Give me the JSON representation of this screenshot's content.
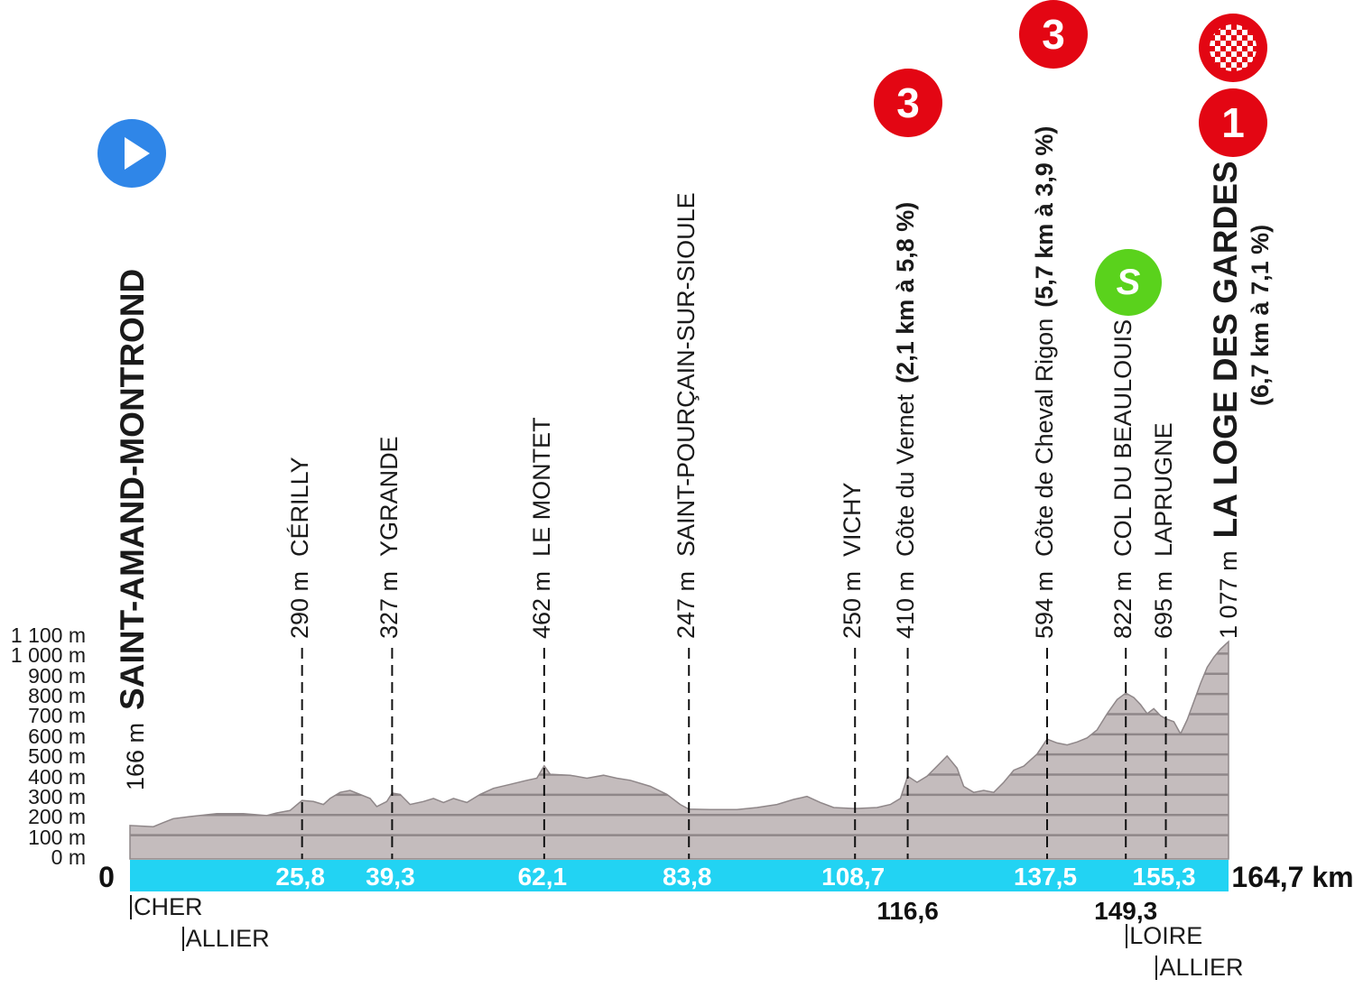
{
  "chart_data": {
    "type": "area",
    "x_unit": "km",
    "y_unit": "m",
    "ylim": [
      0,
      1100
    ],
    "xlim": [
      0,
      164.7
    ],
    "y_ticks": [
      "0 m",
      "100 m",
      "200 m",
      "300 m",
      "400 m",
      "500 m",
      "600 m",
      "700 m",
      "800 m",
      "900 m",
      "1 000 m",
      "1 100 m"
    ],
    "start": {
      "km": "0",
      "name": "SAINT-AMAND-MONTROND",
      "altitude": "166 m"
    },
    "finish": {
      "km": "164,7 km",
      "name": "LA LOGE DES GARDES",
      "altitude": "1 077 m",
      "detail": "(6,7 km à 7,1 %)",
      "category": "1"
    },
    "checkpoints": [
      {
        "km": 25.8,
        "km_label": "25,8",
        "name": "CÉRILLY",
        "altitude": "290 m",
        "label_color": "white"
      },
      {
        "km": 39.3,
        "km_label": "39,3",
        "name": "YGRANDE",
        "altitude": "327 m",
        "label_color": "white"
      },
      {
        "km": 62.1,
        "km_label": "62,1",
        "name": "LE MONTET",
        "altitude": "462 m",
        "label_color": "white"
      },
      {
        "km": 83.8,
        "km_label": "83,8",
        "name": "SAINT-POURÇAIN-SUR-SIOULE",
        "altitude": "247 m",
        "label_color": "white"
      },
      {
        "km": 108.7,
        "km_label": "108,7",
        "name": "VICHY",
        "altitude": "250 m",
        "label_color": "white"
      },
      {
        "km": 116.6,
        "km_label": "116,6",
        "name": "Côte du Vernet",
        "altitude": "410 m",
        "detail": "(2,1 km à 5,8 %)",
        "category": "3",
        "label_color": "black"
      },
      {
        "km": 137.5,
        "km_label": "137,5",
        "name": "Côte de Cheval Rigon",
        "altitude": "594 m",
        "detail": "(5,7 km à 3,9 %)",
        "category": "3",
        "label_color": "white"
      },
      {
        "km": 149.3,
        "km_label": "149,3",
        "name": "COL DU BEAULOUIS",
        "altitude": "822 m",
        "sprint": "S",
        "label_color": "black"
      },
      {
        "km": 155.3,
        "km_label": "155,3",
        "name": "LAPRUGNE",
        "altitude": "695 m",
        "label_color": "white"
      }
    ],
    "departments": [
      {
        "name": "CHER",
        "km": 0
      },
      {
        "name": "ALLIER",
        "km": 7.8
      },
      {
        "name": "LOIRE",
        "km": 149.3
      },
      {
        "name": "ALLIER",
        "km": 153.8
      }
    ],
    "profile": [
      [
        0,
        166
      ],
      [
        3.5,
        160
      ],
      [
        5,
        180
      ],
      [
        6.5,
        200
      ],
      [
        9,
        210
      ],
      [
        13,
        225
      ],
      [
        17,
        225
      ],
      [
        20.5,
        215
      ],
      [
        22,
        228
      ],
      [
        24,
        240
      ],
      [
        25.8,
        290
      ],
      [
        27.5,
        285
      ],
      [
        29,
        270
      ],
      [
        30,
        300
      ],
      [
        31.5,
        330
      ],
      [
        33,
        340
      ],
      [
        36,
        300
      ],
      [
        37,
        260
      ],
      [
        38.5,
        285
      ],
      [
        39.3,
        327
      ],
      [
        40.5,
        320
      ],
      [
        42,
        270
      ],
      [
        44,
        285
      ],
      [
        45.5,
        300
      ],
      [
        47,
        280
      ],
      [
        48.5,
        300
      ],
      [
        50.5,
        280
      ],
      [
        52.5,
        320
      ],
      [
        54.5,
        350
      ],
      [
        57,
        370
      ],
      [
        59.5,
        390
      ],
      [
        61,
        400
      ],
      [
        62.1,
        462
      ],
      [
        63,
        420
      ],
      [
        66,
        415
      ],
      [
        68.5,
        400
      ],
      [
        71,
        415
      ],
      [
        73,
        400
      ],
      [
        75,
        390
      ],
      [
        78,
        360
      ],
      [
        80.5,
        320
      ],
      [
        82.5,
        270
      ],
      [
        83.8,
        247
      ],
      [
        87,
        245
      ],
      [
        91,
        245
      ],
      [
        94,
        255
      ],
      [
        97,
        270
      ],
      [
        99.5,
        295
      ],
      [
        101.5,
        310
      ],
      [
        103.5,
        280
      ],
      [
        105.5,
        255
      ],
      [
        108.7,
        250
      ],
      [
        112,
        255
      ],
      [
        114,
        270
      ],
      [
        115.5,
        300
      ],
      [
        116.6,
        410
      ],
      [
        118,
        380
      ],
      [
        119.5,
        410
      ],
      [
        121,
        460
      ],
      [
        122.5,
        510
      ],
      [
        124,
        450
      ],
      [
        125,
        360
      ],
      [
        126.5,
        330
      ],
      [
        128,
        340
      ],
      [
        129.5,
        330
      ],
      [
        131,
        380
      ],
      [
        132.5,
        440
      ],
      [
        134,
        460
      ],
      [
        136,
        520
      ],
      [
        137.5,
        594
      ],
      [
        139,
        575
      ],
      [
        140.5,
        565
      ],
      [
        142,
        580
      ],
      [
        143.5,
        600
      ],
      [
        145,
        640
      ],
      [
        146.5,
        720
      ],
      [
        148,
        790
      ],
      [
        149.3,
        822
      ],
      [
        150.5,
        800
      ],
      [
        151.5,
        765
      ],
      [
        152.5,
        720
      ],
      [
        153.5,
        745
      ],
      [
        154.5,
        710
      ],
      [
        155.3,
        695
      ],
      [
        156.5,
        680
      ],
      [
        157.5,
        620
      ],
      [
        158.5,
        690
      ],
      [
        159.5,
        780
      ],
      [
        160.5,
        870
      ],
      [
        161.5,
        950
      ],
      [
        162.5,
        1000
      ],
      [
        163.5,
        1040
      ],
      [
        164.7,
        1077
      ]
    ]
  }
}
